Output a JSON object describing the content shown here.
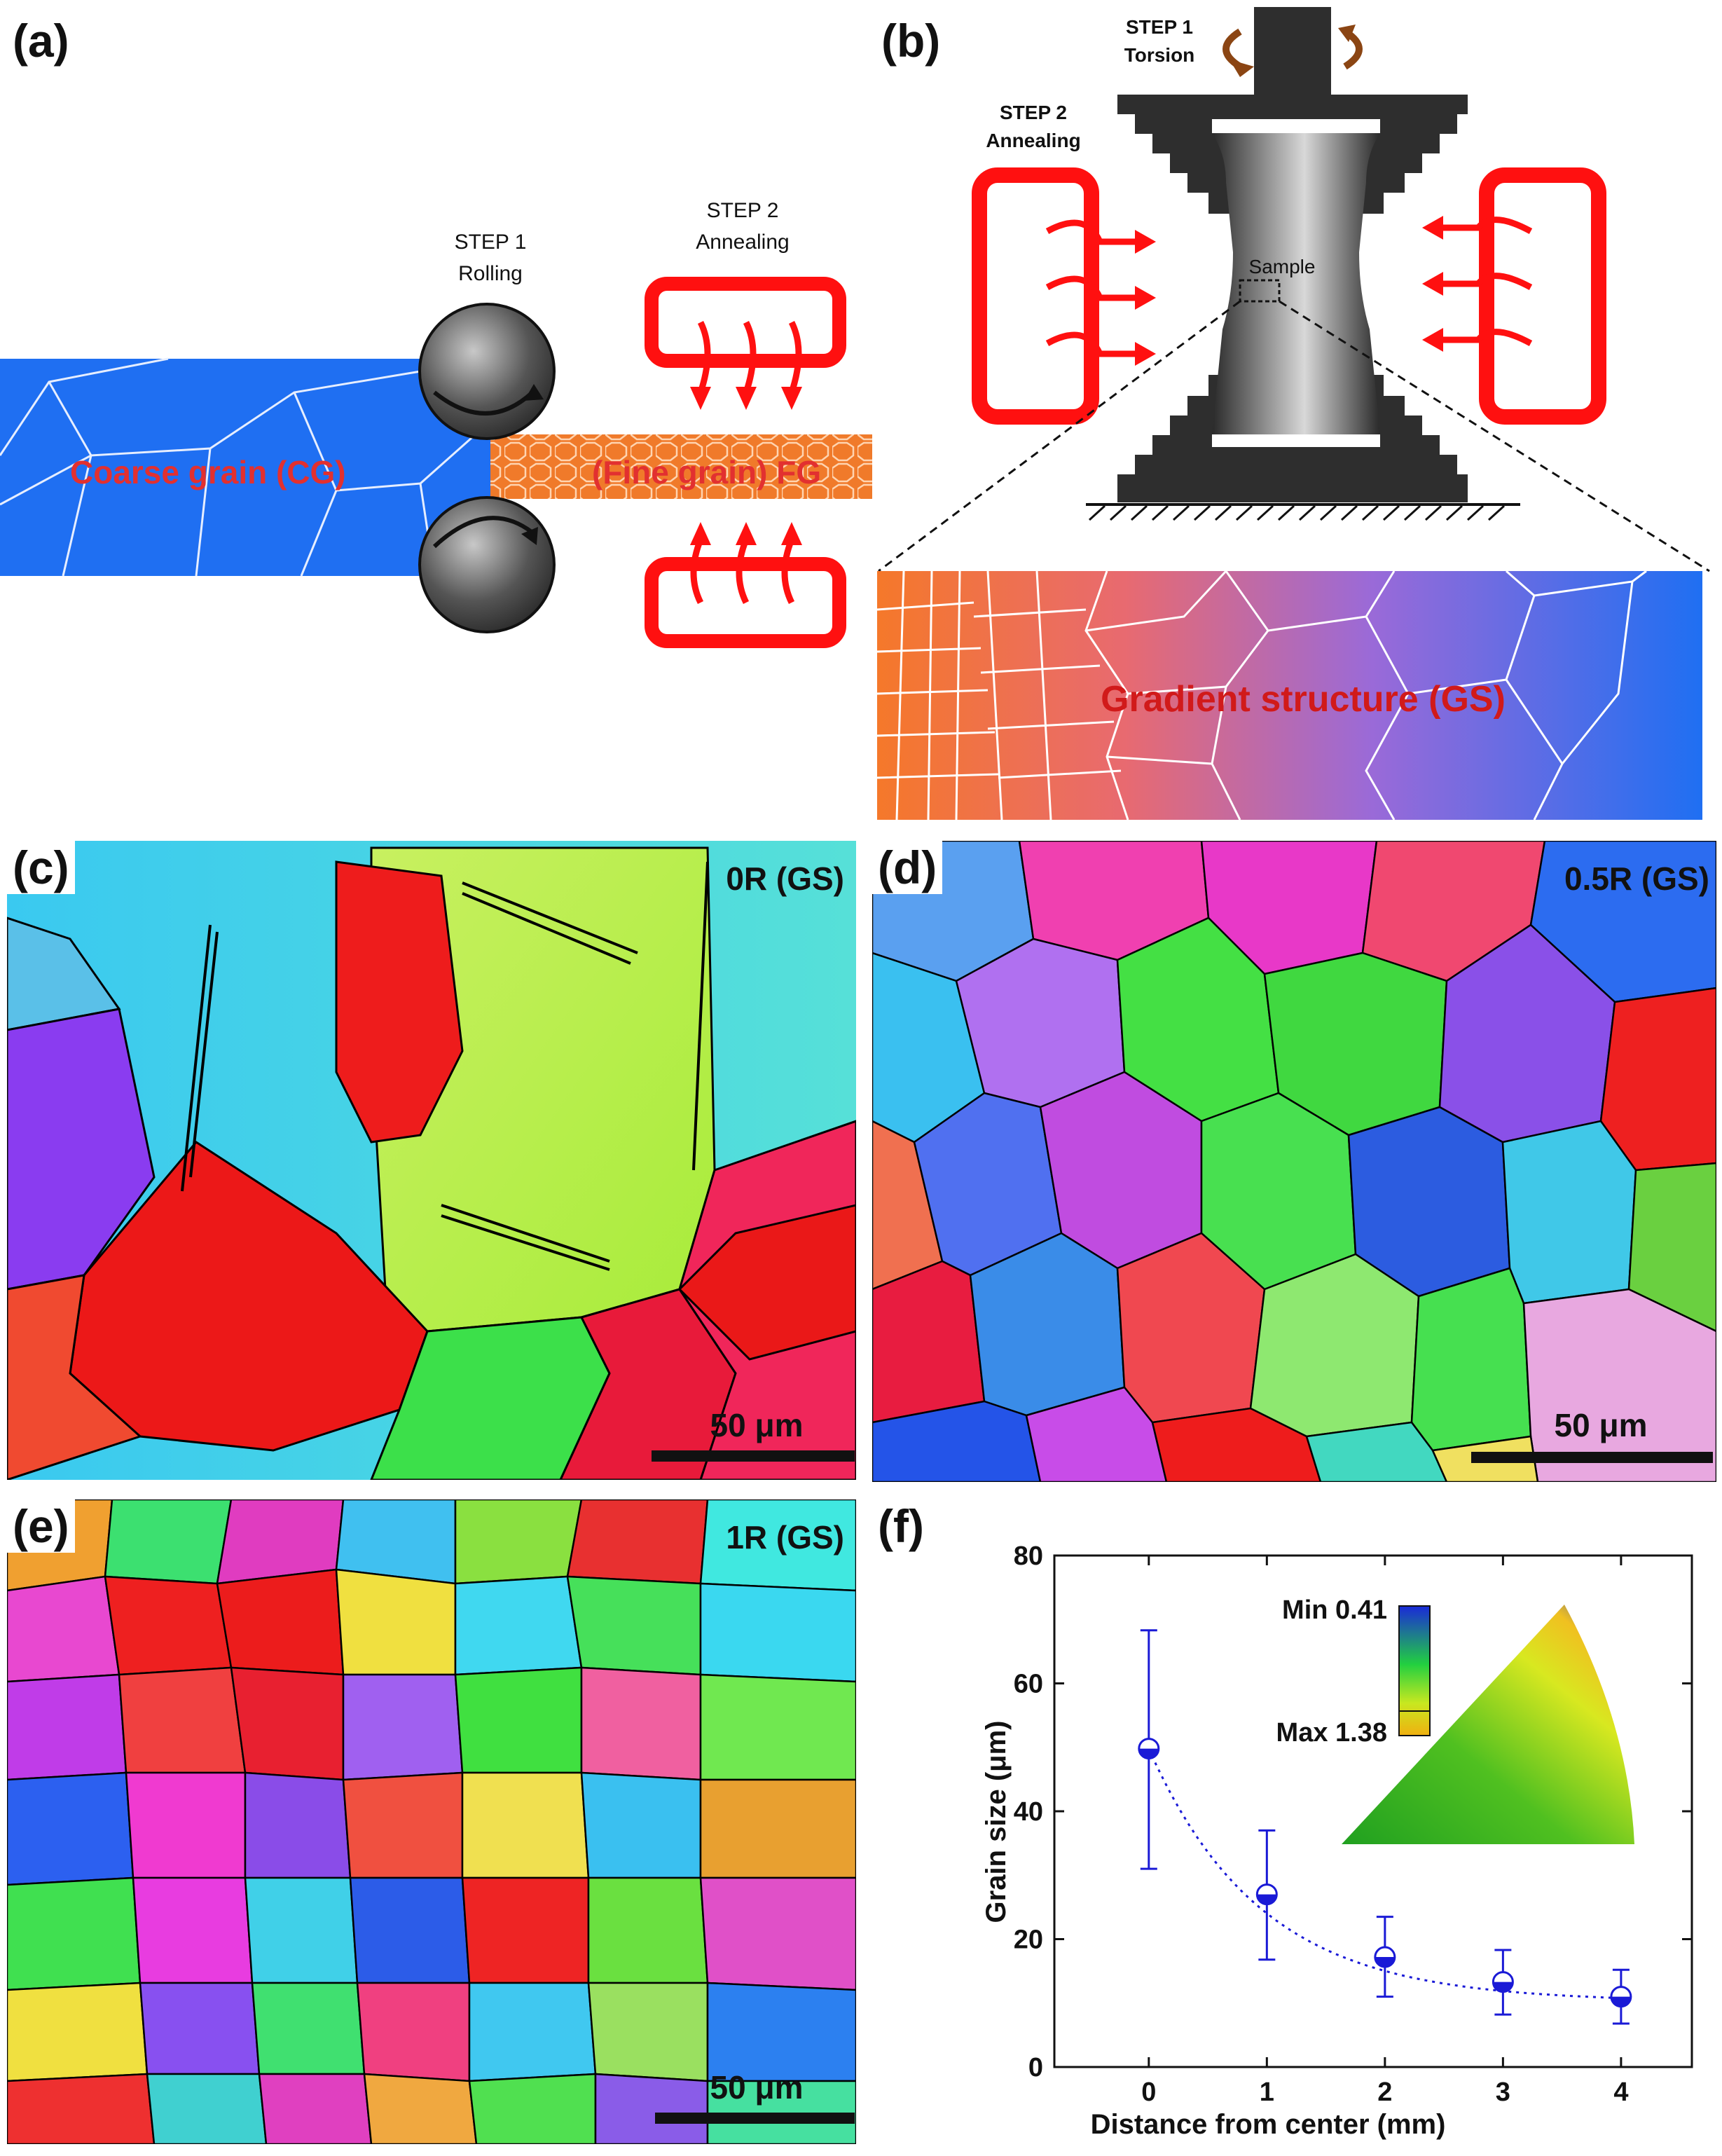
{
  "panel_a": {
    "label": "(a)",
    "step1_title": "STEP 1",
    "step1_name": "Rolling",
    "step2_title": "STEP 2",
    "step2_name": "Annealing",
    "cg_label": "Coarse grain (CG)",
    "fg_label": "(Fine grain) FG",
    "colors": {
      "cg": "#1f6ff2",
      "fg": "#f07a2a",
      "heater": "#ff1010"
    }
  },
  "panel_b": {
    "label": "(b)",
    "step1_title": "STEP 1",
    "step1_name": "Torsion",
    "step2_title": "STEP 2",
    "step2_name": "Annealing",
    "sample_label": "Sample",
    "gs_label": "Gradient structure (GS)"
  },
  "panel_c": {
    "label": "(c)",
    "tag": "0R (GS)",
    "scale": "50 μm"
  },
  "panel_d": {
    "label": "(d)",
    "tag": "0.5R (GS)",
    "scale": "50 μm"
  },
  "panel_e": {
    "label": "(e)",
    "tag": "1R (GS)",
    "scale": "50 μm"
  },
  "panel_f": {
    "label": "(f)",
    "inset_min": "Min 0.41",
    "inset_max": "Max 1.38"
  },
  "chart_data": {
    "type": "scatter",
    "xlabel": "Distance from center (mm)",
    "ylabel": "Grain size (μm)",
    "xlim": [
      -0.8,
      4.6
    ],
    "ylim": [
      0,
      80
    ],
    "xticks": [
      0,
      1,
      2,
      3,
      4
    ],
    "yticks": [
      0,
      20,
      40,
      60,
      80
    ],
    "x": [
      0,
      1,
      2,
      3,
      4
    ],
    "y": [
      49.8,
      27.0,
      17.2,
      13.3,
      11.0
    ],
    "err_low": [
      31.0,
      16.8,
      11.0,
      8.2,
      6.8
    ],
    "err_high": [
      68.3,
      37.0,
      23.5,
      18.3,
      15.2
    ],
    "fit_curve": "dotted",
    "color": "#1a1ad6",
    "grid": false
  }
}
